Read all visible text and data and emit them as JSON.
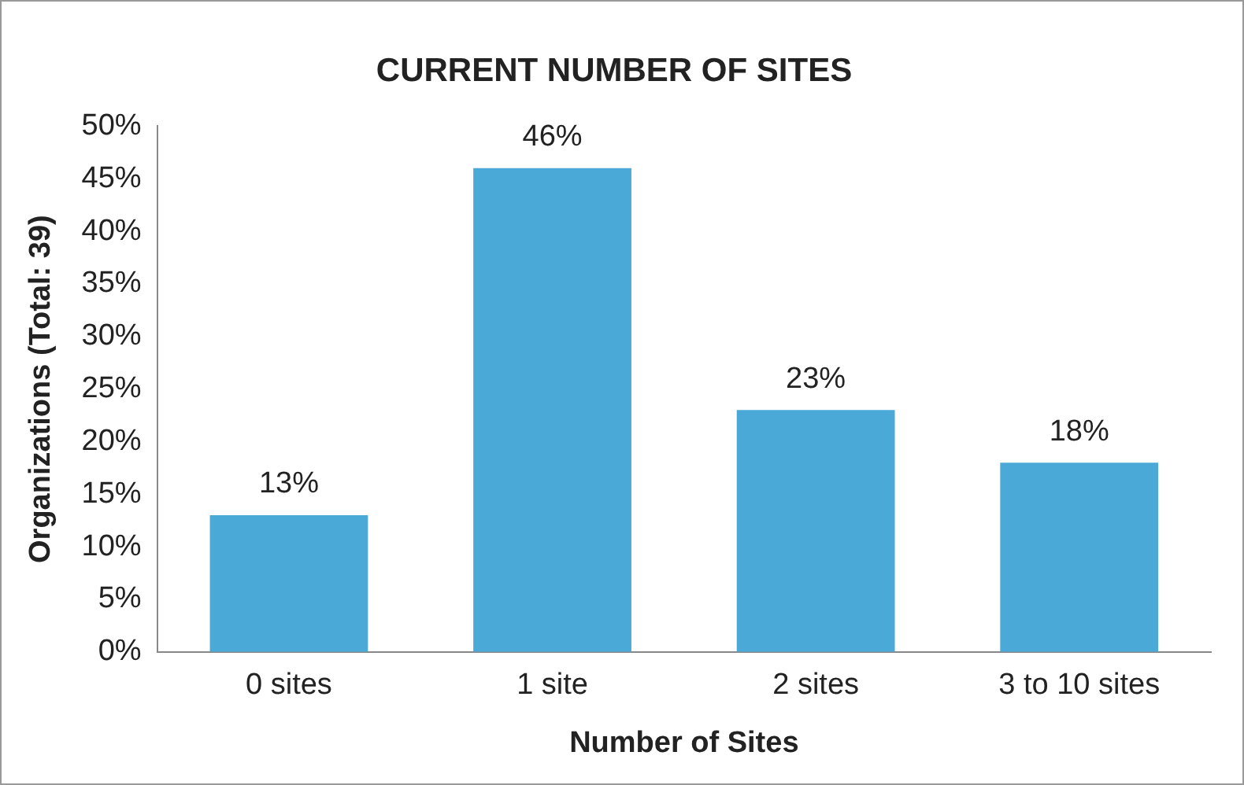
{
  "chart_data": {
    "type": "bar",
    "title": "CURRENT NUMBER OF SITES",
    "xlabel": "Number of Sites",
    "ylabel": "Organizations (Total: 39)",
    "categories": [
      "0 sites",
      "1 site",
      "2 sites",
      "3 to 10 sites"
    ],
    "values": [
      13,
      46,
      23,
      18
    ],
    "value_labels": [
      "13%",
      "46%",
      "23%",
      "18%"
    ],
    "color": "#4aa9d6",
    "ylim": [
      0,
      50
    ],
    "yticks": [
      {
        "value": 0,
        "label": "0%"
      },
      {
        "value": 5,
        "label": "5%"
      },
      {
        "value": 10,
        "label": "10%"
      },
      {
        "value": 15,
        "label": "15%"
      },
      {
        "value": 20,
        "label": "20%"
      },
      {
        "value": 25,
        "label": "25%"
      },
      {
        "value": 30,
        "label": "30%"
      },
      {
        "value": 35,
        "label": "35%"
      },
      {
        "value": 40,
        "label": "40%"
      },
      {
        "value": 45,
        "label": "45%"
      },
      {
        "value": 50,
        "label": "50%"
      }
    ],
    "grid": false,
    "legend": false
  }
}
